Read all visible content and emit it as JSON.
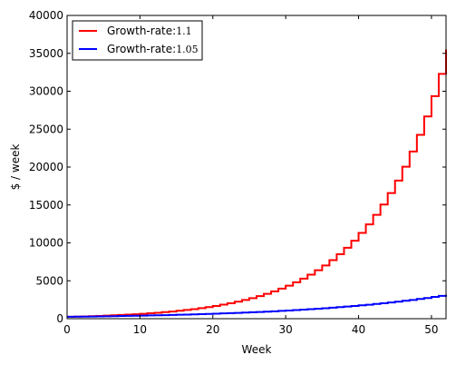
{
  "chart_data": {
    "type": "line",
    "step": true,
    "title": "",
    "xlabel": "Week",
    "ylabel": "$ / week",
    "xlim": [
      0,
      52
    ],
    "ylim": [
      0,
      40000
    ],
    "xticks": [
      0,
      10,
      20,
      30,
      40,
      50
    ],
    "yticks": [
      0,
      5000,
      10000,
      15000,
      20000,
      25000,
      30000,
      35000,
      40000
    ],
    "grid": false,
    "legend_position": "top-left",
    "series": [
      {
        "name": "Growth-rate:",
        "rate": "1.1",
        "color": "#ff0000",
        "x": [
          0,
          1,
          2,
          3,
          4,
          5,
          6,
          7,
          8,
          9,
          10,
          11,
          12,
          13,
          14,
          15,
          16,
          17,
          18,
          19,
          20,
          21,
          22,
          23,
          24,
          25,
          26,
          27,
          28,
          29,
          30,
          31,
          32,
          33,
          34,
          35,
          36,
          37,
          38,
          39,
          40,
          41,
          42,
          43,
          44,
          45,
          46,
          47,
          48,
          49,
          50,
          51,
          52
        ],
        "values": [
          250,
          275,
          303,
          333,
          366,
          403,
          443,
          487,
          536,
          590,
          648,
          713,
          785,
          863,
          949,
          1044,
          1149,
          1264,
          1390,
          1529,
          1682,
          1850,
          2035,
          2239,
          2463,
          2709,
          2980,
          3278,
          3606,
          3967,
          4362,
          4799,
          5278,
          5807,
          6387,
          7026,
          7729,
          8501,
          9352,
          10287,
          11316,
          12447,
          13692,
          15061,
          16567,
          18224,
          20046,
          22051,
          24256,
          26682,
          29350,
          32285,
          35514
        ]
      },
      {
        "name": "Growth-rate:",
        "rate": "1.05",
        "color": "#0000ff",
        "x": [
          0,
          1,
          2,
          3,
          4,
          5,
          6,
          7,
          8,
          9,
          10,
          11,
          12,
          13,
          14,
          15,
          16,
          17,
          18,
          19,
          20,
          21,
          22,
          23,
          24,
          25,
          26,
          27,
          28,
          29,
          30,
          31,
          32,
          33,
          34,
          35,
          36,
          37,
          38,
          39,
          40,
          41,
          42,
          43,
          44,
          45,
          46,
          47,
          48,
          49,
          50,
          51,
          52
        ],
        "values": [
          250,
          263,
          276,
          289,
          304,
          319,
          335,
          352,
          369,
          388,
          407,
          428,
          449,
          471,
          495,
          520,
          546,
          573,
          602,
          632,
          663,
          697,
          731,
          768,
          806,
          847,
          889,
          933,
          980,
          1029,
          1080,
          1134,
          1191,
          1251,
          1313,
          1379,
          1448,
          1520,
          1596,
          1676,
          1760,
          1848,
          1940,
          2037,
          2139,
          2246,
          2358,
          2476,
          2600,
          2730,
          2867,
          3010,
          3160
        ]
      }
    ]
  }
}
